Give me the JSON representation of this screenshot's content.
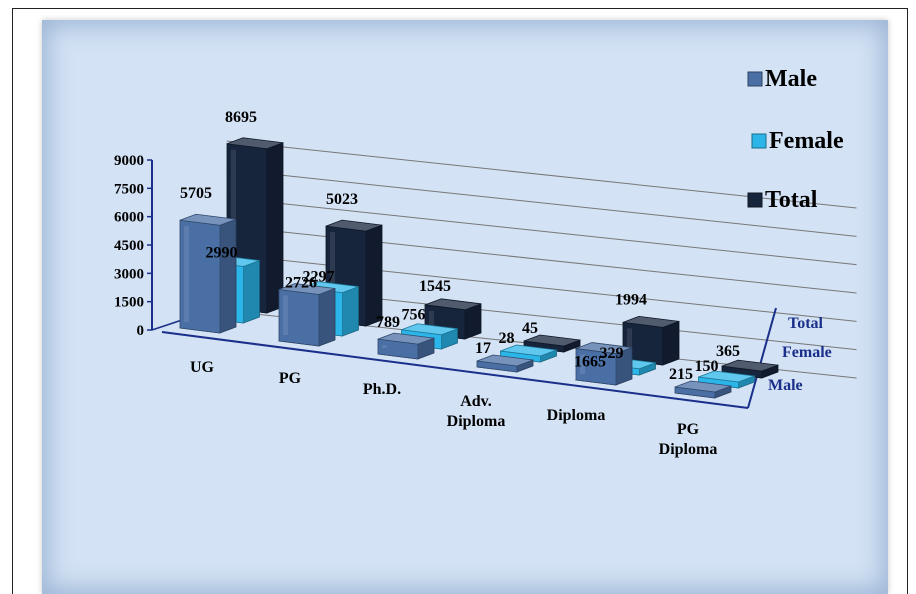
{
  "chart_data": {
    "type": "bar",
    "categories": [
      "UG",
      "PG",
      "Ph.D.",
      "Adv.\nDiploma",
      "Diploma",
      "PG\nDiploma"
    ],
    "series": [
      {
        "name": "Male",
        "values": [
          5705,
          2726,
          789,
          17,
          1665,
          215
        ]
      },
      {
        "name": "Female",
        "values": [
          2990,
          2297,
          756,
          28,
          329,
          150
        ]
      },
      {
        "name": "Total",
        "values": [
          8695,
          5023,
          1545,
          45,
          1994,
          365
        ]
      }
    ],
    "depth_axis_labels": [
      "Total",
      "Female",
      "Male"
    ],
    "y_ticks": [
      0,
      1500,
      3000,
      4500,
      6000,
      7500,
      9000
    ],
    "ylim": [
      0,
      9000
    ],
    "title": "",
    "xlabel": "",
    "ylabel": "",
    "legend_position": "top-right",
    "grid": true,
    "colors": {
      "Male": "#4a6fa5",
      "Female": "#2bb5e8",
      "Total": "#16243c"
    }
  }
}
